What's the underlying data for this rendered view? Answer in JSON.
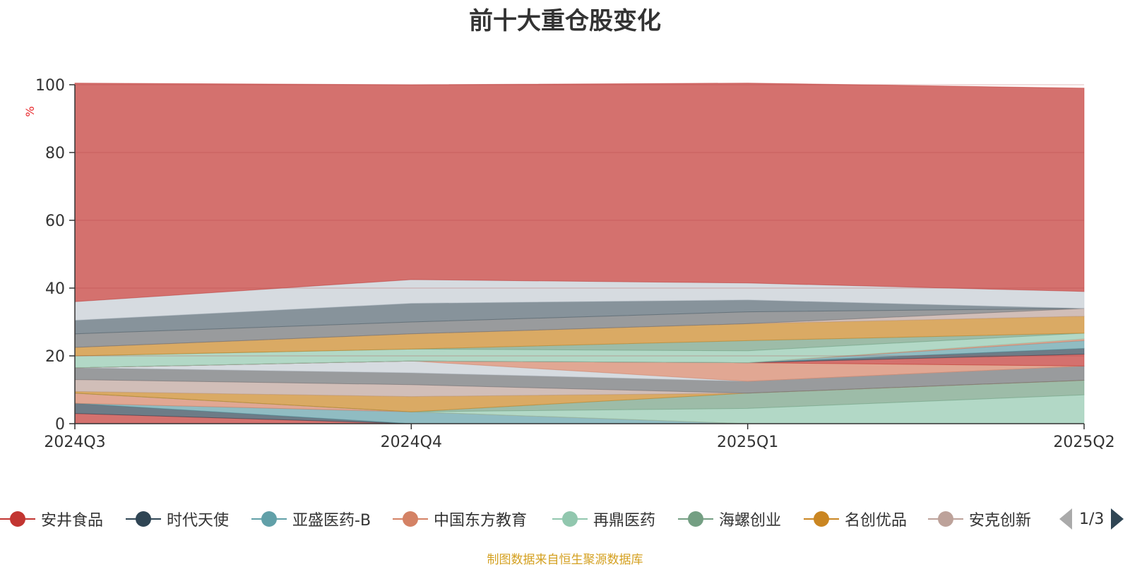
{
  "chart_data": {
    "type": "area",
    "stacked": true,
    "title": "前十大重仓股变化",
    "ylabel": "%",
    "ylim": [
      0,
      100
    ],
    "yticks": [
      0,
      20,
      40,
      60,
      80,
      100
    ],
    "categories": [
      "2024Q3",
      "2024Q4",
      "2025Q1",
      "2025Q2"
    ],
    "grid": true,
    "legend_position": "bottom",
    "series": [
      {
        "name": "安井食品",
        "color": "#c23531",
        "values": [
          3.0,
          0.0,
          0.0,
          0.0
        ]
      },
      {
        "name": "时代天使",
        "color": "#2f4554",
        "values": [
          3.0,
          0.0,
          0.0,
          0.0
        ]
      },
      {
        "name": "亚盛医药-B",
        "color": "#61a0a8",
        "values": [
          0.0,
          3.5,
          0.0,
          0.0
        ]
      },
      {
        "name": "中国东方教育",
        "color": "#d48265",
        "values": [
          3.0,
          0.0,
          0.0,
          0.0
        ]
      },
      {
        "name": "再鼎医药",
        "color": "#91c7ae",
        "values": [
          0.0,
          0.0,
          4.5,
          8.5
        ]
      },
      {
        "name": "海螺创业",
        "color": "#749f83",
        "values": [
          0.0,
          0.0,
          4.5,
          4.3
        ]
      },
      {
        "name": "名创优品",
        "color": "#ca8622",
        "values": [
          0.5,
          4.5,
          0.0,
          0.0
        ]
      },
      {
        "name": "安克创新",
        "color": "#bda29a",
        "values": [
          3.5,
          3.5,
          0.0,
          0.0
        ]
      },
      {
        "name": "",
        "color": "#6e7074",
        "values": [
          3.5,
          3.5,
          3.5,
          4.2
        ]
      },
      {
        "name": "",
        "color": "#c4ccd3",
        "values": [
          0.0,
          3.5,
          0.0,
          0.0
        ]
      },
      {
        "name": "",
        "color": "#d48265",
        "values": [
          0.0,
          0.0,
          5.5,
          0.0
        ]
      },
      {
        "name": "",
        "color": "#c23531",
        "values": [
          0.0,
          0.0,
          0.0,
          3.5
        ]
      },
      {
        "name": "",
        "color": "#2f4554",
        "values": [
          0.0,
          0.0,
          0.0,
          1.7
        ]
      },
      {
        "name": "",
        "color": "#61a0a8",
        "values": [
          0.0,
          0.0,
          0.0,
          2.3
        ]
      },
      {
        "name": "",
        "color": "#d48265",
        "values": [
          0.0,
          0.0,
          0.0,
          0.5
        ]
      },
      {
        "name": "",
        "color": "#91c7ae",
        "values": [
          3.5,
          3.5,
          3.5,
          1.7
        ]
      },
      {
        "name": "",
        "color": "#749f83",
        "values": [
          0.0,
          0.0,
          3.0,
          0.0
        ]
      },
      {
        "name": "",
        "color": "#ca8622",
        "values": [
          2.5,
          4.5,
          5.0,
          5.0
        ]
      },
      {
        "name": "",
        "color": "#bda29a",
        "values": [
          0.0,
          0.0,
          0.0,
          2.3
        ]
      },
      {
        "name": "",
        "color": "#6e7074",
        "values": [
          4.0,
          3.5,
          3.5,
          0.0
        ]
      },
      {
        "name": "",
        "color": "#546570",
        "values": [
          4.0,
          5.5,
          3.5,
          0.0
        ]
      },
      {
        "name": "",
        "color": "#c4ccd3",
        "values": [
          5.5,
          7.0,
          5.0,
          5.0
        ]
      },
      {
        "name": "",
        "color": "#c23531",
        "values": [
          64.5,
          57.5,
          59.0,
          60.0
        ]
      }
    ]
  },
  "legend": {
    "page": "1/3"
  },
  "source": "制图数据来自恒生聚源数据库"
}
